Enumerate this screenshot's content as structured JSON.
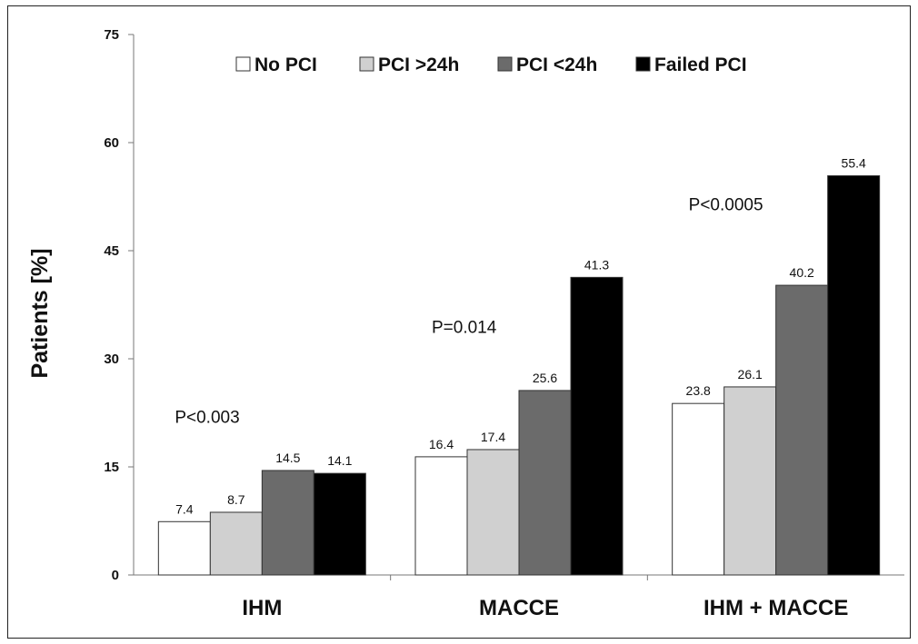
{
  "chart_data": {
    "type": "bar",
    "ylabel": "Patients [%]",
    "xlabel": "",
    "ylim": [
      0,
      75
    ],
    "yticks": [
      0,
      15,
      30,
      45,
      60,
      75
    ],
    "grid": false,
    "legend_position": "top",
    "categories": [
      "IHM",
      "MACCE",
      "IHM + MACCE"
    ],
    "series": [
      {
        "name": "No PCI",
        "values": [
          7.4,
          16.4,
          23.8
        ],
        "color": "#ffffff",
        "labels": [
          "7.4",
          "16.4",
          "23.8"
        ]
      },
      {
        "name": "PCI >24h",
        "values": [
          8.7,
          17.4,
          26.1
        ],
        "color": "#d0d0d0",
        "labels": [
          "8.7",
          "17.4",
          "26.1"
        ]
      },
      {
        "name": "PCI <24h",
        "values": [
          14.5,
          25.6,
          40.2
        ],
        "color": "#6b6b6b",
        "labels": [
          "14.5",
          "25.6",
          "40.2"
        ]
      },
      {
        "name": "Failed PCI",
        "values": [
          14.1,
          41.3,
          55.4
        ],
        "color": "#000000",
        "labels": [
          "14.1",
          "41.3",
          "55.4"
        ]
      }
    ],
    "annotations": [
      {
        "text": "P<0.003",
        "category": "IHM",
        "y": 22
      },
      {
        "text": "P=0.014",
        "category": "MACCE",
        "y": 34.5
      },
      {
        "text": "P<0.0005",
        "category": "IHM + MACCE",
        "y": 51.5
      }
    ]
  }
}
